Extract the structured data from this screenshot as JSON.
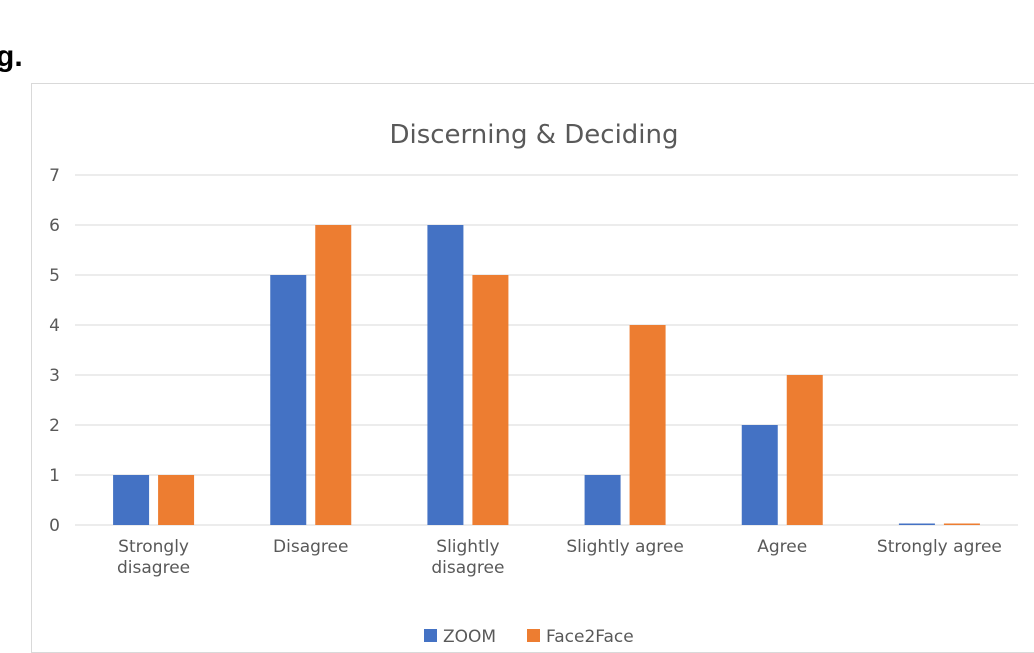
{
  "page_fragment_text": "g.",
  "chart_data": {
    "type": "bar",
    "title": "Discerning & Deciding",
    "categories": [
      "Strongly\ndisagree",
      "Disagree",
      "Slightly\ndisagree",
      "Slightly agree",
      "Agree",
      "Strongly agree"
    ],
    "series": [
      {
        "name": "ZOOM",
        "color": "#4472c4",
        "values": [
          1,
          5,
          6,
          1,
          2,
          0
        ]
      },
      {
        "name": "Face2Face",
        "color": "#ed7d31",
        "values": [
          1,
          6,
          5,
          4,
          3,
          0
        ]
      }
    ],
    "ylim": [
      0,
      7
    ],
    "yticks": [
      0,
      1,
      2,
      3,
      4,
      5,
      6,
      7
    ],
    "xlabel": "",
    "ylabel": "",
    "grid": true,
    "legend_position": "bottom",
    "gridline_color": "#d9d9d9"
  }
}
